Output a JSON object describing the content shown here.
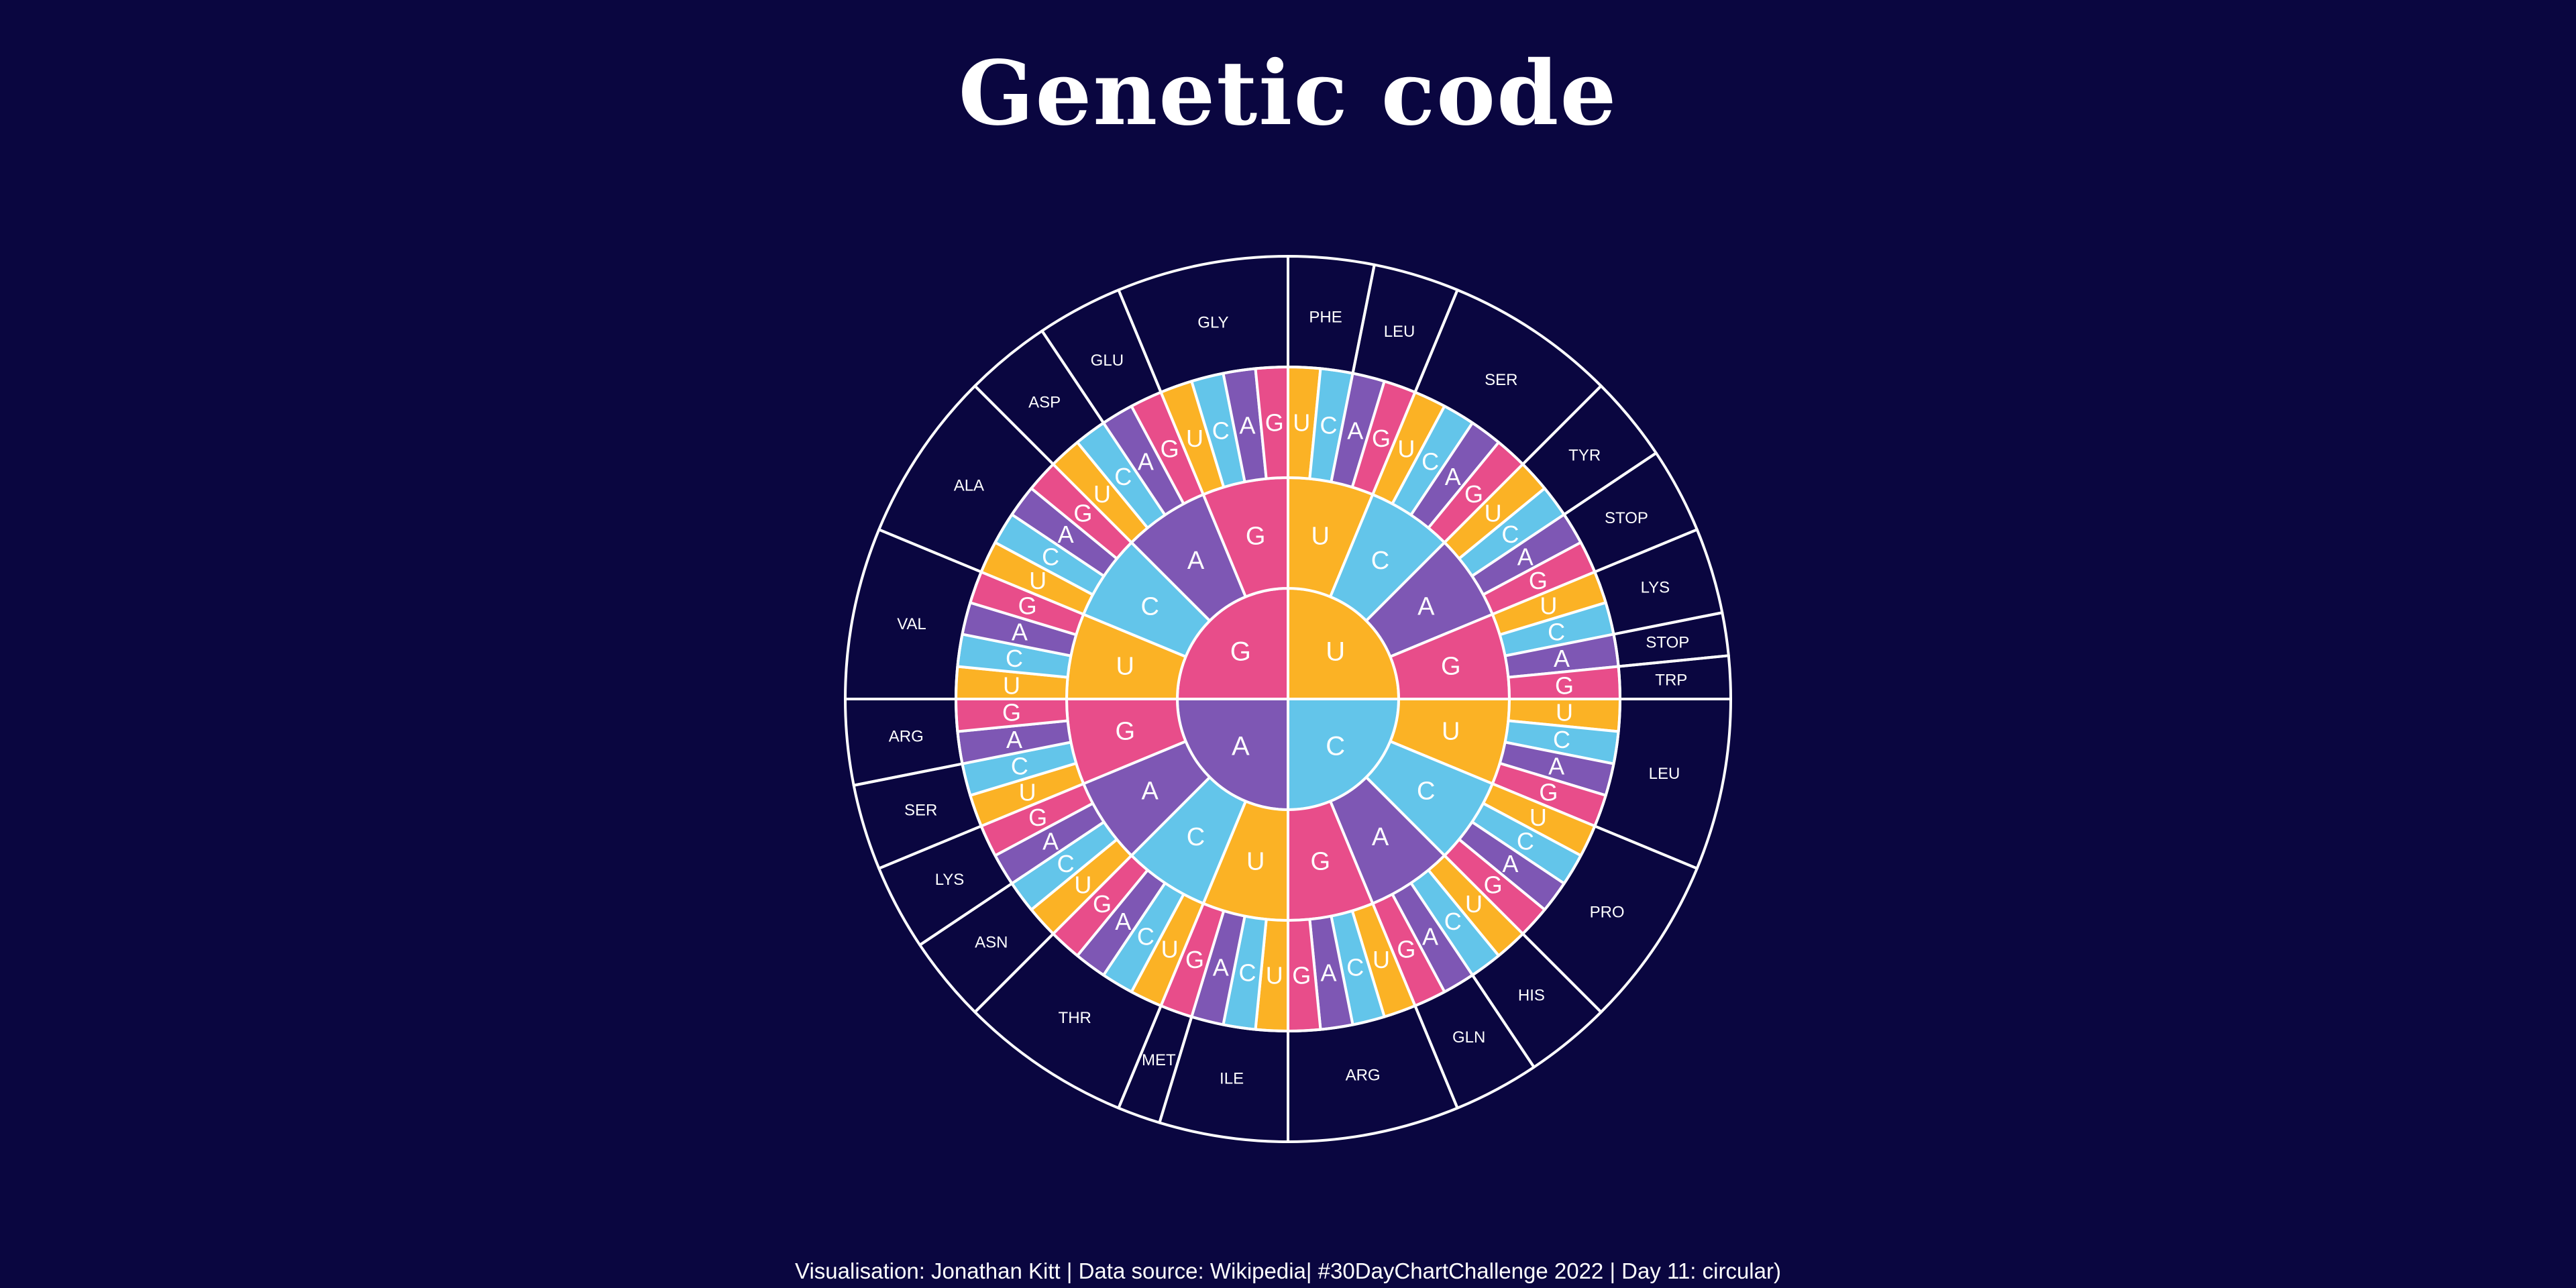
{
  "title": "Genetic code",
  "caption": "Visualisation: Jonathan Kitt | Data source: Wikipedia| #30DayChartChallenge 2022 | Day 11: circular)",
  "colors": {
    "background": "#0A0640",
    "U": "#FBB225",
    "C": "#63C5EA",
    "A": "#7E57B4",
    "G": "#E84D8A",
    "stroke": "#FFFFFF"
  },
  "chart_data": {
    "type": "sunburst",
    "bases": [
      "U",
      "C",
      "A",
      "G"
    ],
    "rings": [
      "first base",
      "second base",
      "third base",
      "amino acid"
    ],
    "amino_acids": [
      {
        "name": "PHE",
        "codons": 2
      },
      {
        "name": "LEU",
        "codons": 2
      },
      {
        "name": "SER",
        "codons": 4
      },
      {
        "name": "TYR",
        "codons": 2
      },
      {
        "name": "STOP",
        "codons": 2
      },
      {
        "name": "LYS",
        "codons": 2
      },
      {
        "name": "STOP",
        "codons": 1
      },
      {
        "name": "TRP",
        "codons": 1
      },
      {
        "name": "LEU",
        "codons": 4
      },
      {
        "name": "PRO",
        "codons": 4
      },
      {
        "name": "HIS",
        "codons": 2
      },
      {
        "name": "GLN",
        "codons": 2
      },
      {
        "name": "ARG",
        "codons": 4
      },
      {
        "name": "ILE",
        "codons": 3
      },
      {
        "name": "MET",
        "codons": 1
      },
      {
        "name": "THR",
        "codons": 4
      },
      {
        "name": "ASN",
        "codons": 2
      },
      {
        "name": "LYS",
        "codons": 2
      },
      {
        "name": "SER",
        "codons": 2
      },
      {
        "name": "ARG",
        "codons": 2
      },
      {
        "name": "VAL",
        "codons": 4
      },
      {
        "name": "ALA",
        "codons": 4
      },
      {
        "name": "ASP",
        "codons": 2
      },
      {
        "name": "GLU",
        "codons": 2
      },
      {
        "name": "GLY",
        "codons": 4
      }
    ]
  }
}
